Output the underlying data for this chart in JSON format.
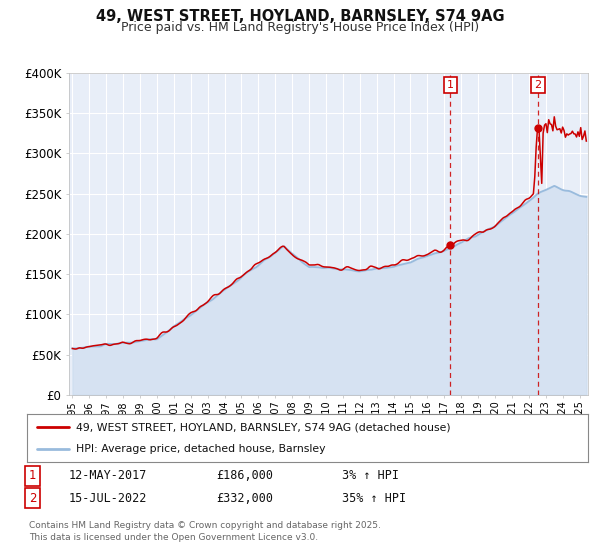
{
  "title": "49, WEST STREET, HOYLAND, BARNSLEY, S74 9AG",
  "subtitle": "Price paid vs. HM Land Registry's House Price Index (HPI)",
  "background_color": "#ffffff",
  "plot_bg_color": "#e8eef8",
  "grid_color": "#ffffff",
  "red_line_color": "#cc0000",
  "blue_line_color": "#99bbdd",
  "annotation1": {
    "label": "1",
    "date": "12-MAY-2017",
    "price": "£186,000",
    "pct": "3% ↑ HPI"
  },
  "annotation2": {
    "label": "2",
    "date": "15-JUL-2022",
    "price": "£332,000",
    "pct": "35% ↑ HPI"
  },
  "legend_line1": "49, WEST STREET, HOYLAND, BARNSLEY, S74 9AG (detached house)",
  "legend_line2": "HPI: Average price, detached house, Barnsley",
  "footer": "Contains HM Land Registry data © Crown copyright and database right 2025.\nThis data is licensed under the Open Government Licence v3.0.",
  "ylim": [
    0,
    400000
  ],
  "yticks": [
    0,
    50000,
    100000,
    150000,
    200000,
    250000,
    300000,
    350000,
    400000
  ],
  "ytick_labels": [
    "£0",
    "£50K",
    "£100K",
    "£150K",
    "£200K",
    "£250K",
    "£300K",
    "£350K",
    "£400K"
  ],
  "xlim_start": 1994.8,
  "xlim_end": 2025.5,
  "sale1_year": 2017.36,
  "sale2_year": 2022.54,
  "sale1_price": 186000,
  "sale2_price": 332000
}
